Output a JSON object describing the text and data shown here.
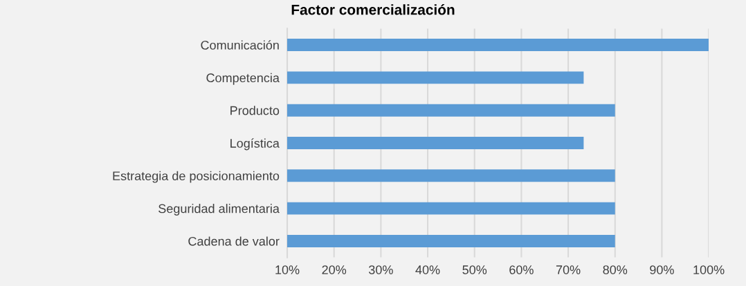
{
  "chart_data": {
    "type": "bar",
    "orientation": "horizontal",
    "title": "Factor comercialización",
    "categories": [
      "Comunicación",
      "Competencia",
      "Producto",
      "Logística",
      "Estrategia de posicionamiento",
      "Seguridad alimentaria",
      "Cadena de valor"
    ],
    "values": [
      100,
      73.3,
      80,
      73.3,
      80,
      80,
      80
    ],
    "color": "#5b9bd5",
    "xlim": [
      10,
      100
    ],
    "xticks": [
      {
        "value": 10,
        "label": "10%"
      },
      {
        "value": 20,
        "label": "20%"
      },
      {
        "value": 30,
        "label": "30%"
      },
      {
        "value": 40,
        "label": "40%"
      },
      {
        "value": 50,
        "label": "50%"
      },
      {
        "value": 60,
        "label": "60%"
      },
      {
        "value": 70,
        "label": "70%"
      },
      {
        "value": 80,
        "label": "80%"
      },
      {
        "value": 90,
        "label": "90%"
      },
      {
        "value": 100,
        "label": "100%"
      }
    ],
    "grid": "x",
    "legend": false
  }
}
